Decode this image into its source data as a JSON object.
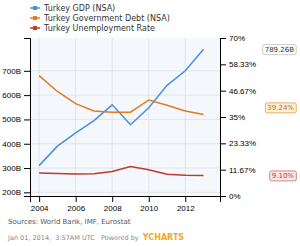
{
  "chart_data": {
    "type": "line",
    "x": [
      2004,
      2005,
      2006,
      2007,
      2008,
      2009,
      2010,
      2011,
      2012,
      2013
    ],
    "series": [
      {
        "name": "Turkey GDP (NSA)",
        "color": "#4a90d9",
        "values": [
          310,
          390,
          445,
          495,
          560,
          478,
          548,
          640,
          700,
          789
        ]
      },
      {
        "name": "Turkey Government Debt (NSA)",
        "color": "#e07b20",
        "values": [
          680,
          615,
          565,
          535,
          530,
          530,
          580,
          558,
          535,
          520
        ]
      },
      {
        "name": "Turkey Unemployment Rate",
        "color": "#c0392b",
        "axis": "y2",
        "values": [
          10.2,
          10.0,
          9.7,
          9.9,
          10.9,
          13.1,
          11.6,
          9.6,
          9.2,
          9.1
        ]
      }
    ],
    "xlim": [
      2003.5,
      2013.9
    ],
    "xticks": [
      2004,
      2006,
      2008,
      2010,
      2012
    ],
    "ylim": [
      185,
      835
    ],
    "yticks": [
      {
        "value": 200,
        "label": "200B"
      },
      {
        "value": 300,
        "label": "300B"
      },
      {
        "value": 400,
        "label": "400B"
      },
      {
        "value": 500,
        "label": "500B"
      },
      {
        "value": 600,
        "label": "600B"
      },
      {
        "value": 700,
        "label": "700B"
      }
    ],
    "y2lim": [
      0,
      70
    ],
    "y2ticks": [
      {
        "value": 0,
        "label": "0%"
      },
      {
        "value": 11.67,
        "label": "11.67%"
      },
      {
        "value": 23.33,
        "label": "23.33%"
      },
      {
        "value": 35,
        "label": "35%"
      },
      {
        "value": 46.67,
        "label": "46.67%"
      },
      {
        "value": 58.33,
        "label": "58.33%"
      },
      {
        "value": 70,
        "label": "70%"
      }
    ],
    "grid": true,
    "legend": "top",
    "annotations": [
      {
        "text": "789.26B",
        "y": 789,
        "axis": "y"
      },
      {
        "text": "39.24%",
        "y": 39.24,
        "axis": "y2"
      },
      {
        "text": "9.10%",
        "y": 9.1,
        "axis": "y2"
      }
    ],
    "source": "Sources: World Bank, IMF, Eurostat",
    "footer": [
      "Jan 01, 2014,  3:57AM UTC   Powered by  ",
      "YCHARTS"
    ]
  }
}
